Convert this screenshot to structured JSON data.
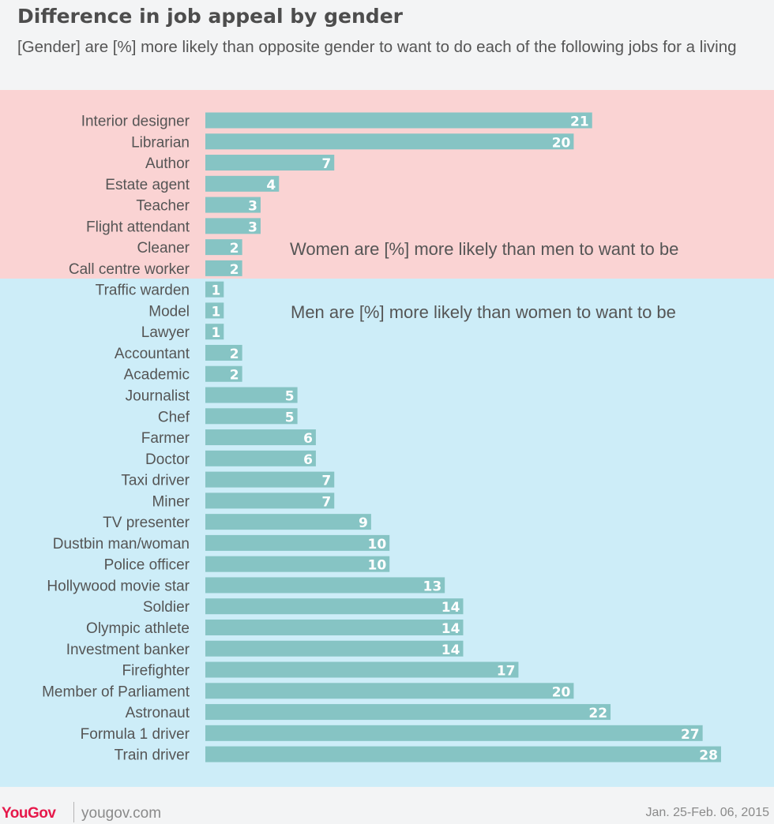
{
  "header": {
    "title": "Difference in job appeal by gender",
    "subtitle": "[Gender] are [%] more likely than opposite gender to want to do each of the following jobs for a living"
  },
  "annotations": {
    "women": "Women are [%] more likely than men to want to be",
    "men": "Men are [%] more likely than women to want to be"
  },
  "footer": {
    "brand": "YouGov",
    "site": "yougov.com",
    "date": "Jan. 25-Feb. 06, 2015"
  },
  "colors": {
    "bar": "#86c4c4",
    "women_band": "#fad3d3",
    "men_band": "#cdedf8",
    "brand": "#e6194b"
  },
  "chart_data": {
    "type": "bar",
    "orientation": "horizontal",
    "title": "Difference in job appeal by gender",
    "xlim": [
      0,
      28
    ],
    "grid": false,
    "groups": [
      {
        "name": "Women are [%] more likely than men to want to be",
        "categories": [
          "Interior designer",
          "Librarian",
          "Author",
          "Estate agent",
          "Teacher",
          "Flight attendant",
          "Cleaner",
          "Call centre worker"
        ],
        "values": [
          21,
          20,
          7,
          4,
          3,
          3,
          2,
          2
        ]
      },
      {
        "name": "Men are [%] more likely than women to want to be",
        "categories": [
          "Traffic warden",
          "Model",
          "Lawyer",
          "Accountant",
          "Academic",
          "Journalist",
          "Chef",
          "Farmer",
          "Doctor",
          "Taxi driver",
          "Miner",
          "TV presenter",
          "Dustbin man/woman",
          "Police officer",
          "Hollywood movie star",
          "Soldier",
          "Olympic athlete",
          "Investment banker",
          "Firefighter",
          "Member of Parliament",
          "Astronaut",
          "Formula 1 driver",
          "Train driver"
        ],
        "values": [
          1,
          1,
          1,
          2,
          2,
          5,
          5,
          6,
          6,
          7,
          7,
          9,
          10,
          10,
          13,
          14,
          14,
          14,
          17,
          20,
          22,
          27,
          28
        ]
      }
    ]
  }
}
